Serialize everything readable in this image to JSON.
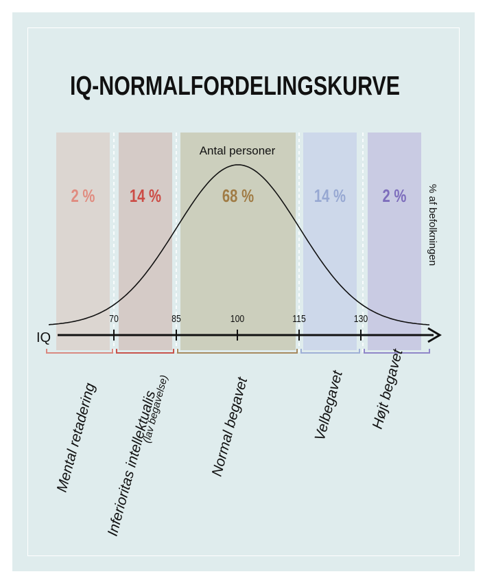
{
  "chart_data": {
    "type": "area",
    "title": "IQ-NORMALFORDELINGSKURVE",
    "curve_label": "Antal personer",
    "ylabel": "% af befolkningen",
    "xlabel": "IQ",
    "ticks": [
      {
        "value": 70,
        "label": "70"
      },
      {
        "value": 85,
        "label": "85"
      },
      {
        "value": 100,
        "label": "100"
      },
      {
        "value": 115,
        "label": "115"
      },
      {
        "value": 130,
        "label": "130"
      }
    ],
    "xlim": [
      55,
      145
    ],
    "distribution": {
      "mean": 100,
      "sd": 15
    },
    "bands": [
      {
        "range": [
          55,
          70
        ],
        "percent_label": "2 %",
        "value": 2,
        "category": "Mental retadering",
        "sub": "",
        "fill": "#dcd6d1",
        "text": "#e08c80",
        "bracket": "#d98880"
      },
      {
        "range": [
          70,
          85
        ],
        "percent_label": "14 %",
        "value": 14,
        "category": "Inferioritas intellektualis",
        "sub": "(lav begavelse)",
        "fill": "#d5cbc7",
        "text": "#cc4b45",
        "bracket": "#c8534b"
      },
      {
        "range": [
          85,
          115
        ],
        "percent_label": "68 %",
        "value": 68,
        "category": "Normal begavet",
        "sub": "",
        "fill": "#cccfbd",
        "text": "#a07c45",
        "bracket": "#a78a5f"
      },
      {
        "range": [
          115,
          130
        ],
        "percent_label": "14 %",
        "value": 14,
        "category": "Velbegavet",
        "sub": "",
        "fill": "#cdd8ea",
        "text": "#97a8d2",
        "bracket": "#9fb0d6"
      },
      {
        "range": [
          130,
          145
        ],
        "percent_label": "2 %",
        "value": 2,
        "category": "Højt begavet",
        "sub": "",
        "fill": "#c9cbe3",
        "text": "#7d6dbc",
        "bracket": "#8f86c8"
      }
    ]
  }
}
